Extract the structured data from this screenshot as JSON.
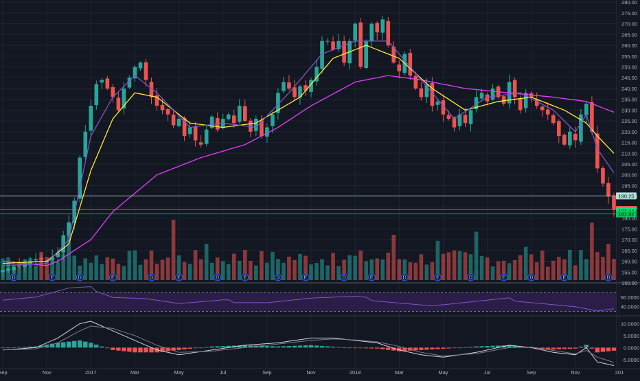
{
  "chart_data": {
    "type": "candlestick",
    "instrument_chart": true,
    "price_axis": {
      "ticks": [
        "280.00",
        "275.00",
        "270.00",
        "265.00",
        "260.00",
        "255.00",
        "250.00",
        "245.00",
        "240.00",
        "235.00",
        "230.00",
        "225.00",
        "220.00",
        "215.00",
        "210.00",
        "205.00",
        "200.00",
        "195.00",
        "190.00",
        "185.00",
        "180.00",
        "175.00",
        "170.00",
        "165.00",
        "160.00",
        "155.00",
        "150.00"
      ],
      "ylim": [
        150,
        281
      ]
    },
    "x_axis": {
      "labels": [
        "Sep",
        "Nov",
        "2017",
        "Mar",
        "May",
        "Jul",
        "Sep",
        "Nov",
        "2018",
        "Mar",
        "May",
        "Jul",
        "Sep",
        "Nov",
        "201"
      ],
      "index_positions": [
        0.5,
        8.5,
        16.5,
        24.5,
        32.5,
        40.5,
        48.5,
        56.5,
        64.5,
        72.5,
        80.5,
        88.5,
        96.5,
        104.5,
        112.5
      ],
      "bar_count": 112
    },
    "price_labels": [
      {
        "text": "190.25",
        "value": 190.25,
        "color": "#b2dfdb",
        "text_color": "#131722"
      },
      {
        "text": "184.01",
        "value": 184.01,
        "color": "#ef5350",
        "text_color": "#ffffff"
      },
      {
        "text": "183.44",
        "value": 183.44,
        "color": "#00e676",
        "text_color": "#131722"
      },
      {
        "text": "181.92",
        "value": 181.92,
        "color": "#00c853",
        "text_color": "#131722"
      }
    ],
    "horizontal_lines": [
      {
        "value": 190.25,
        "color": "#b2dfdb"
      },
      {
        "value": 183.9,
        "color": "#26a69a"
      },
      {
        "value": 181.92,
        "color": "#00c853"
      }
    ],
    "close_anchors": [
      [
        0,
        156
      ],
      [
        3,
        158
      ],
      [
        6,
        161
      ],
      [
        8,
        160
      ],
      [
        10,
        164
      ],
      [
        11,
        172
      ],
      [
        12,
        178
      ],
      [
        13,
        188
      ],
      [
        14,
        208
      ],
      [
        15,
        220
      ],
      [
        16,
        232
      ],
      [
        17,
        242
      ],
      [
        18,
        244
      ],
      [
        19,
        240
      ],
      [
        20,
        236
      ],
      [
        21,
        230
      ],
      [
        22,
        240
      ],
      [
        24,
        250
      ],
      [
        25,
        252
      ],
      [
        26,
        244
      ],
      [
        27,
        236
      ],
      [
        28,
        232
      ],
      [
        30,
        228
      ],
      [
        31,
        223
      ],
      [
        32,
        226
      ],
      [
        33,
        218
      ],
      [
        34,
        222
      ],
      [
        35,
        216
      ],
      [
        36,
        214
      ],
      [
        37,
        221
      ],
      [
        38,
        227
      ],
      [
        39,
        221
      ],
      [
        40,
        226
      ],
      [
        41,
        228
      ],
      [
        42,
        224
      ],
      [
        43,
        232
      ],
      [
        44,
        225
      ],
      [
        45,
        220
      ],
      [
        46,
        226
      ],
      [
        47,
        218
      ],
      [
        48,
        222
      ],
      [
        49,
        228
      ],
      [
        50,
        238
      ],
      [
        51,
        243
      ],
      [
        52,
        240
      ],
      [
        53,
        236
      ],
      [
        54,
        241
      ],
      [
        55,
        239
      ],
      [
        56,
        244
      ],
      [
        57,
        250
      ],
      [
        58,
        262
      ],
      [
        59,
        262
      ],
      [
        60,
        258
      ],
      [
        61,
        262
      ],
      [
        62,
        252
      ],
      [
        63,
        262
      ],
      [
        64,
        270
      ],
      [
        65,
        250
      ],
      [
        66,
        262
      ],
      [
        67,
        270
      ],
      [
        68,
        266
      ],
      [
        69,
        272
      ],
      [
        70,
        260
      ],
      [
        71,
        252
      ],
      [
        72,
        248
      ],
      [
        73,
        256
      ],
      [
        74,
        246
      ],
      [
        75,
        240
      ],
      [
        76,
        236
      ],
      [
        77,
        242
      ],
      [
        78,
        232
      ],
      [
        79,
        234
      ],
      [
        80,
        228
      ],
      [
        81,
        226
      ],
      [
        82,
        222
      ],
      [
        83,
        228
      ],
      [
        84,
        224
      ],
      [
        85,
        230
      ],
      [
        86,
        236
      ],
      [
        87,
        238
      ],
      [
        88,
        234
      ],
      [
        89,
        240
      ],
      [
        90,
        236
      ],
      [
        91,
        233
      ],
      [
        92,
        243
      ],
      [
        93,
        236
      ],
      [
        94,
        230
      ],
      [
        95,
        238
      ],
      [
        96,
        236
      ],
      [
        97,
        232
      ],
      [
        98,
        230
      ],
      [
        99,
        228
      ],
      [
        100,
        224
      ],
      [
        101,
        218
      ],
      [
        102,
        214
      ],
      [
        103,
        220
      ],
      [
        104,
        216
      ],
      [
        105,
        228
      ],
      [
        106,
        233
      ],
      [
        107,
        220
      ],
      [
        108,
        203
      ],
      [
        109,
        196
      ],
      [
        110,
        190
      ],
      [
        111,
        184
      ]
    ],
    "moving_averages": [
      {
        "color": "#e040fb",
        "anchors": [
          [
            0,
            160
          ],
          [
            8,
            158
          ],
          [
            10,
            160
          ],
          [
            16,
            170
          ],
          [
            20,
            183
          ],
          [
            28,
            200
          ],
          [
            36,
            208
          ],
          [
            44,
            214
          ],
          [
            50,
            222
          ],
          [
            56,
            232
          ],
          [
            64,
            243
          ],
          [
            70,
            246
          ],
          [
            76,
            244
          ],
          [
            84,
            240
          ],
          [
            92,
            238
          ],
          [
            100,
            236
          ],
          [
            106,
            234
          ],
          [
            111,
            229
          ]
        ]
      },
      {
        "color": "#ffeb3b",
        "anchors": [
          [
            0,
            159
          ],
          [
            8,
            160
          ],
          [
            12,
            168
          ],
          [
            16,
            202
          ],
          [
            20,
            226
          ],
          [
            24,
            238
          ],
          [
            28,
            236
          ],
          [
            34,
            224
          ],
          [
            40,
            222
          ],
          [
            46,
            224
          ],
          [
            54,
            236
          ],
          [
            60,
            254
          ],
          [
            66,
            260
          ],
          [
            72,
            254
          ],
          [
            78,
            240
          ],
          [
            84,
            230
          ],
          [
            90,
            234
          ],
          [
            96,
            236
          ],
          [
            102,
            230
          ],
          [
            106,
            224
          ],
          [
            108,
            218
          ],
          [
            111,
            210
          ]
        ]
      },
      {
        "color": "#7e57c2",
        "anchors": [
          [
            0,
            158
          ],
          [
            8,
            159
          ],
          [
            12,
            170
          ],
          [
            16,
            218
          ],
          [
            20,
            236
          ],
          [
            24,
            246
          ],
          [
            28,
            238
          ],
          [
            34,
            222
          ],
          [
            40,
            224
          ],
          [
            46,
            222
          ],
          [
            52,
            238
          ],
          [
            58,
            256
          ],
          [
            64,
            262
          ],
          [
            70,
            262
          ],
          [
            76,
            244
          ],
          [
            82,
            226
          ],
          [
            88,
            236
          ],
          [
            94,
            238
          ],
          [
            100,
            230
          ],
          [
            104,
            220
          ],
          [
            106,
            228
          ],
          [
            108,
            212
          ],
          [
            111,
            201
          ]
        ]
      }
    ],
    "volume_spikes": [
      [
        12,
        0.9
      ],
      [
        31,
        1.0
      ],
      [
        37,
        0.6
      ],
      [
        44,
        0.5
      ],
      [
        60,
        0.45
      ],
      [
        71,
        0.75
      ],
      [
        79,
        0.65
      ],
      [
        86,
        0.8
      ],
      [
        95,
        0.55
      ],
      [
        103,
        0.5
      ],
      [
        107,
        0.95
      ],
      [
        110,
        0.6
      ]
    ],
    "events": [
      {
        "index": 2,
        "label": "D"
      },
      {
        "index": 9,
        "label": "E"
      },
      {
        "index": 14,
        "label": "D"
      },
      {
        "index": 20,
        "label": "E"
      },
      {
        "index": 27,
        "label": "D"
      },
      {
        "index": 32,
        "label": "E"
      },
      {
        "index": 39,
        "label": "D"
      },
      {
        "index": 44,
        "label": "E"
      },
      {
        "index": 50,
        "label": "D"
      },
      {
        "index": 55,
        "label": "E"
      },
      {
        "index": 62,
        "label": "D"
      },
      {
        "index": 67,
        "label": "E"
      },
      {
        "index": 73,
        "label": "D"
      },
      {
        "index": 79,
        "label": "E"
      },
      {
        "index": 85,
        "label": "D"
      },
      {
        "index": 91,
        "label": "E"
      },
      {
        "index": 96,
        "label": "D"
      },
      {
        "index": 102,
        "label": "E"
      },
      {
        "index": 110,
        "label": "D"
      }
    ],
    "rsi_panel": {
      "ticks": [
        "60.0000",
        "40.0000"
      ],
      "tick_values": [
        60,
        40
      ],
      "ylim": [
        22,
        88
      ],
      "band": [
        30,
        70
      ],
      "fill": "#2a1e48",
      "line_color": "#7e57c2",
      "anchors": [
        [
          0,
          55
        ],
        [
          6,
          60
        ],
        [
          12,
          78
        ],
        [
          16,
          80
        ],
        [
          20,
          62
        ],
        [
          26,
          58
        ],
        [
          32,
          46
        ],
        [
          40,
          52
        ],
        [
          48,
          50
        ],
        [
          56,
          58
        ],
        [
          64,
          60
        ],
        [
          70,
          52
        ],
        [
          78,
          42
        ],
        [
          86,
          50
        ],
        [
          92,
          56
        ],
        [
          98,
          48
        ],
        [
          104,
          40
        ],
        [
          108,
          30
        ],
        [
          111,
          34
        ]
      ]
    },
    "macd_panel": {
      "ticks": [
        "10.0000",
        "5.0000",
        "0.0000",
        "-5.0000"
      ],
      "tick_values": [
        10,
        5,
        0,
        -5
      ],
      "ylim": [
        -8.5,
        13
      ],
      "positive_color": "#26a69a",
      "negative_color": "#ef5350",
      "macd_color": "#d1d4dc",
      "signal_color": "#787b86",
      "macd_anchors": [
        [
          0,
          -1
        ],
        [
          6,
          0
        ],
        [
          10,
          4
        ],
        [
          14,
          10
        ],
        [
          16,
          11
        ],
        [
          20,
          7
        ],
        [
          24,
          3
        ],
        [
          28,
          -1
        ],
        [
          32,
          -3
        ],
        [
          38,
          -1
        ],
        [
          44,
          1
        ],
        [
          50,
          2
        ],
        [
          56,
          4
        ],
        [
          60,
          4
        ],
        [
          64,
          3
        ],
        [
          68,
          2
        ],
        [
          72,
          -1
        ],
        [
          76,
          -3
        ],
        [
          80,
          -4
        ],
        [
          86,
          -2
        ],
        [
          92,
          1
        ],
        [
          96,
          0
        ],
        [
          100,
          -2
        ],
        [
          104,
          -3
        ],
        [
          106,
          0
        ],
        [
          108,
          -6
        ],
        [
          111,
          -7.5
        ]
      ],
      "signal_anchors": [
        [
          0,
          -1
        ],
        [
          6,
          -0.5
        ],
        [
          10,
          2
        ],
        [
          14,
          7
        ],
        [
          16,
          9
        ],
        [
          20,
          8
        ],
        [
          24,
          5
        ],
        [
          28,
          1
        ],
        [
          32,
          -2
        ],
        [
          38,
          -1.5
        ],
        [
          44,
          0
        ],
        [
          50,
          1.5
        ],
        [
          56,
          3
        ],
        [
          60,
          3.6
        ],
        [
          64,
          3.2
        ],
        [
          68,
          2.4
        ],
        [
          72,
          0.5
        ],
        [
          76,
          -2
        ],
        [
          80,
          -3.5
        ],
        [
          86,
          -2.5
        ],
        [
          92,
          0
        ],
        [
          96,
          0.2
        ],
        [
          100,
          -1.2
        ],
        [
          104,
          -2.6
        ],
        [
          106,
          -1.2
        ],
        [
          108,
          -4
        ],
        [
          111,
          -6.2
        ]
      ]
    }
  }
}
